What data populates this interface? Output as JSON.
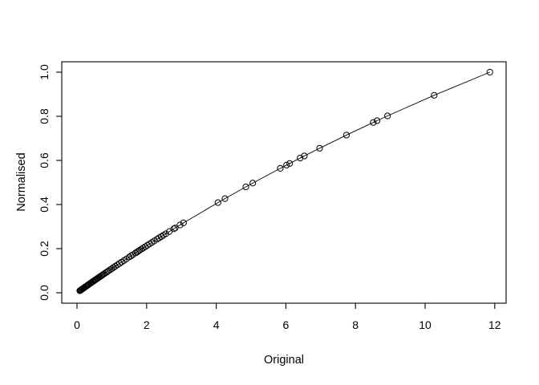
{
  "chart_data": {
    "type": "scatter",
    "style": "points-connected-by-line (R base plot, type='o', open circle markers)",
    "title": "",
    "xlabel": "Original",
    "ylabel": "Normalised",
    "x_ticks": [
      0,
      2,
      4,
      6,
      8,
      10,
      12
    ],
    "y_ticks": [
      "0.0",
      "0.2",
      "0.4",
      "0.6",
      "0.8",
      "1.0"
    ],
    "xlim": [
      -0.44,
      12.33
    ],
    "ylim": [
      -0.047,
      1.047
    ],
    "grid": false,
    "legend": "none",
    "marker": "open-circle",
    "colors": {
      "points": "#000000",
      "line": "#000000",
      "axis": "#000000",
      "background": "#ffffff"
    },
    "points": [
      [
        0.08,
        0.009
      ],
      [
        0.1,
        0.0112
      ],
      [
        0.12,
        0.0134
      ],
      [
        0.14,
        0.0157
      ],
      [
        0.16,
        0.0179
      ],
      [
        0.18,
        0.0201
      ],
      [
        0.2,
        0.0224
      ],
      [
        0.22,
        0.0246
      ],
      [
        0.25,
        0.0279
      ],
      [
        0.27,
        0.0301
      ],
      [
        0.29,
        0.0323
      ],
      [
        0.31,
        0.0345
      ],
      [
        0.33,
        0.0368
      ],
      [
        0.35,
        0.039
      ],
      [
        0.38,
        0.0423
      ],
      [
        0.4,
        0.0445
      ],
      [
        0.42,
        0.0467
      ],
      [
        0.45,
        0.05
      ],
      [
        0.47,
        0.0521
      ],
      [
        0.5,
        0.0554
      ],
      [
        0.52,
        0.0576
      ],
      [
        0.55,
        0.0609
      ],
      [
        0.58,
        0.0642
      ],
      [
        0.6,
        0.0663
      ],
      [
        0.63,
        0.0696
      ],
      [
        0.66,
        0.0728
      ],
      [
        0.69,
        0.0761
      ],
      [
        0.72,
        0.0793
      ],
      [
        0.75,
        0.0826
      ],
      [
        0.78,
        0.0858
      ],
      [
        0.82,
        0.0901
      ],
      [
        0.86,
        0.0944
      ],
      [
        0.9,
        0.0987
      ],
      [
        0.95,
        0.104
      ],
      [
        1.0,
        0.1093
      ],
      [
        1.05,
        0.1147
      ],
      [
        1.1,
        0.12
      ],
      [
        1.16,
        0.1263
      ],
      [
        1.22,
        0.1326
      ],
      [
        1.28,
        0.1389
      ],
      [
        1.35,
        0.1462
      ],
      [
        1.42,
        0.1535
      ],
      [
        1.5,
        0.1618
      ],
      [
        1.55,
        0.167
      ],
      [
        1.6,
        0.1721
      ],
      [
        1.68,
        0.1803
      ],
      [
        1.72,
        0.1844
      ],
      [
        1.76,
        0.1885
      ],
      [
        1.8,
        0.1926
      ],
      [
        1.85,
        0.1977
      ],
      [
        1.9,
        0.2028
      ],
      [
        1.96,
        0.2088
      ],
      [
        2.02,
        0.2149
      ],
      [
        2.08,
        0.2209
      ],
      [
        2.15,
        0.2279
      ],
      [
        2.22,
        0.2349
      ],
      [
        2.3,
        0.2429
      ],
      [
        2.36,
        0.2488
      ],
      [
        2.42,
        0.2547
      ],
      [
        2.48,
        0.2606
      ],
      [
        2.55,
        0.2675
      ],
      [
        2.65,
        0.2772
      ],
      [
        2.78,
        0.2899
      ],
      [
        2.82,
        0.2937
      ],
      [
        2.96,
        0.3072
      ],
      [
        3.06,
        0.3167
      ],
      [
        4.05,
        0.4088
      ],
      [
        4.25,
        0.4268
      ],
      [
        4.85,
        0.4799
      ],
      [
        5.05,
        0.4972
      ],
      [
        5.84,
        0.564
      ],
      [
        6.02,
        0.5789
      ],
      [
        6.11,
        0.5862
      ],
      [
        6.41,
        0.6106
      ],
      [
        6.53,
        0.6203
      ],
      [
        6.97,
        0.6553
      ],
      [
        7.74,
        0.7147
      ],
      [
        8.51,
        0.7721
      ],
      [
        8.62,
        0.7801
      ],
      [
        8.92,
        0.8018
      ],
      [
        10.26,
        0.8953
      ],
      [
        11.86,
        1.0
      ]
    ]
  }
}
